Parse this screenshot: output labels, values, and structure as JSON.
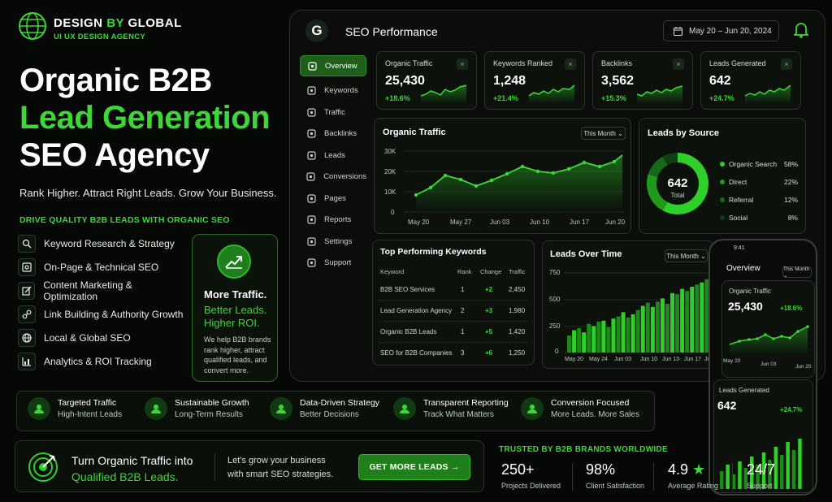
{
  "brand": {
    "name_a": "DESIGN",
    "name_b": "BY",
    "name_c": "GLOBAL",
    "sub": "UI UX DESIGN AGENCY"
  },
  "hero": {
    "line1": "Organic B2B",
    "line2": "Lead Generation",
    "line3": "SEO Agency",
    "tagline": "Rank Higher. Attract Right Leads. Grow Your Business.",
    "drive": "DRIVE QUALITY B2B LEADS WITH ORGANIC SEO"
  },
  "features": [
    "Keyword Research & Strategy",
    "On-Page & Technical SEO",
    "Content Marketing & Optimization",
    "Link Building & Authority Growth",
    "Local & Global SEO",
    "Analytics & ROI Tracking"
  ],
  "promo": {
    "t1": "More Traffic.",
    "t2": "Better Leads. Higher ROI.",
    "t3": "We help B2B brands rank higher, attract qualified leads, and convert more."
  },
  "dashboard": {
    "logo": "G",
    "title": "SEO Performance",
    "date_range": "May 20 – Jun 20, 2024",
    "nav": [
      "Overview",
      "Keywords",
      "Traffic",
      "Backlinks",
      "Leads",
      "Conversions",
      "Pages",
      "Reports",
      "Settings",
      "Support"
    ],
    "kpis": [
      {
        "title": "Organic Traffic",
        "value": "25,430",
        "change": "+18.6%"
      },
      {
        "title": "Keywords Ranked",
        "value": "1,248",
        "change": "+21.4%"
      },
      {
        "title": "Backlinks",
        "value": "3,562",
        "change": "+15.3%"
      },
      {
        "title": "Leads Generated",
        "value": "642",
        "change": "+24.7%"
      }
    ],
    "kpi_close": "×",
    "traffic": {
      "title": "Organic Traffic",
      "select": "This Month ⌄",
      "yticks": [
        "30K",
        "20K",
        "10K",
        "0"
      ],
      "xticks": [
        "May 20",
        "May 27",
        "Jun 03",
        "Jun 10",
        "Jun 17",
        "Jun 20"
      ]
    },
    "sources": {
      "title": "Leads by Source",
      "total": "642",
      "total_label": "Total",
      "items": [
        {
          "name": "Organic Search",
          "pct": "58%",
          "v": 58,
          "color": "#2fcf2a"
        },
        {
          "name": "Direct",
          "pct": "22%",
          "v": 22,
          "color": "#1f9a1b"
        },
        {
          "name": "Referral",
          "pct": "12%",
          "v": 12,
          "color": "#16691a"
        },
        {
          "name": "Social",
          "pct": "8%",
          "v": 8,
          "color": "#0f3f12"
        }
      ]
    },
    "keywords": {
      "title": "Top Performing Keywords",
      "headers": [
        "Keyword",
        "Rank",
        "Change",
        "Traffic"
      ],
      "rows": [
        [
          "B2B SEO Services",
          "1",
          "+2",
          "2,450"
        ],
        [
          "Lead Generation Agency",
          "2",
          "+3",
          "1,980"
        ],
        [
          "Organic B2B Leads",
          "1",
          "+5",
          "1,420"
        ],
        [
          "SEO for B2B Companies",
          "3",
          "+6",
          "1,250"
        ]
      ]
    },
    "leads_time": {
      "title": "Leads Over Time",
      "select": "This Month ⌄",
      "yticks": [
        "750",
        "500",
        "250",
        "0"
      ],
      "xticks": [
        "May 20",
        "May 24",
        "Jun 03",
        "Jun 10",
        "Jun 13",
        "Jun 17",
        "Jun 20"
      ]
    }
  },
  "phone": {
    "time": "9:41",
    "title": "Overview",
    "select": "This Month ⌄",
    "card1_title": "Organic Traffic",
    "card1_value": "25,430",
    "card1_change": "+18.6%",
    "xticks": [
      "May 20",
      "Jun 03",
      "Jun 20"
    ],
    "card2_title": "Leads Generated",
    "card2_value": "642",
    "card2_change": "+24.7%"
  },
  "bottom_features": [
    {
      "t": "Targeted Traffic",
      "s": "High-Intent Leads"
    },
    {
      "t": "Sustainable Growth",
      "s": "Long-Term Results"
    },
    {
      "t": "Data-Driven Strategy",
      "s": "Better Decisions"
    },
    {
      "t": "Transparent Reporting",
      "s": "Track What Matters"
    },
    {
      "t": "Conversion Focused",
      "s": "More Leads. More Sales"
    }
  ],
  "cta": {
    "l1": "Turn Organic Traffic into",
    "l2": "Qualified B2B Leads.",
    "m1": "Let's grow your business",
    "m2": "with smart SEO strategies.",
    "button": "GET MORE LEADS →"
  },
  "trust": {
    "title": "TRUSTED BY B2B BRANDS WORLDWIDE",
    "stats": [
      {
        "v": "250+",
        "l": "Projects Delivered"
      },
      {
        "v": "98%",
        "l": "Client Satisfaction"
      },
      {
        "v": "4.9",
        "l": "Average Rating"
      },
      {
        "v": "24/7",
        "l": "Support"
      }
    ],
    "star": "★"
  },
  "colors": {
    "accent": "#3fd63a",
    "dark_green": "#1f7f1a",
    "bg": "#050805"
  }
}
